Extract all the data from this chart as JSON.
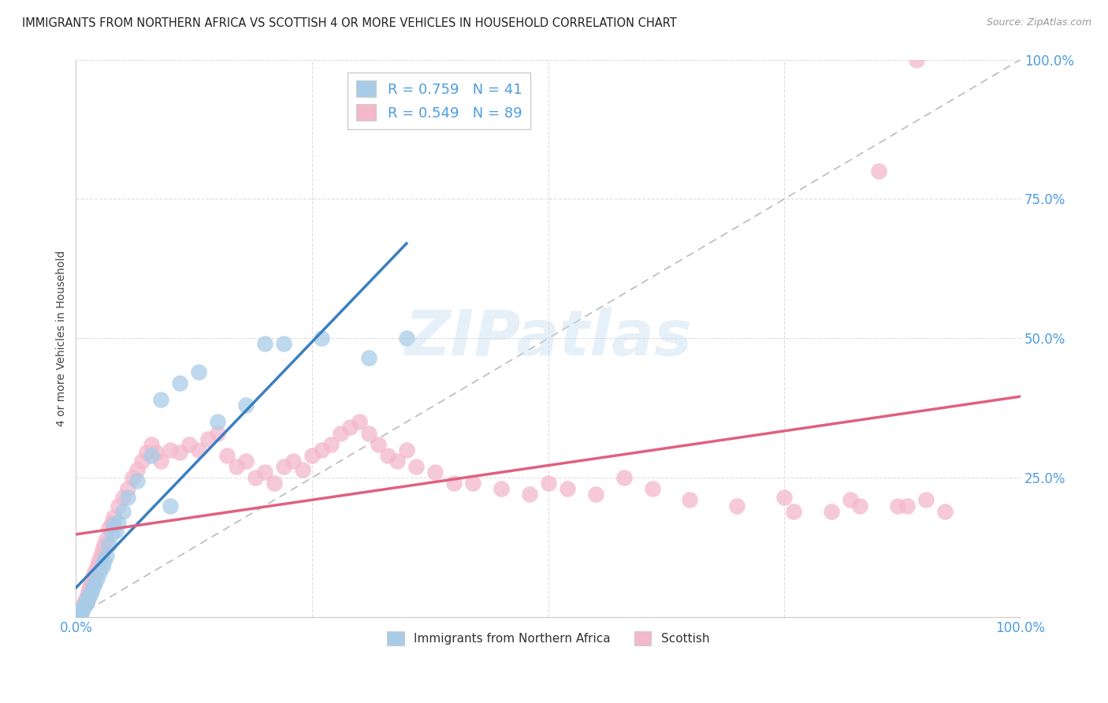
{
  "title": "IMMIGRANTS FROM NORTHERN AFRICA VS SCOTTISH 4 OR MORE VEHICLES IN HOUSEHOLD CORRELATION CHART",
  "source": "Source: ZipAtlas.com",
  "ylabel": "4 or more Vehicles in Household",
  "watermark": "ZIPatlas",
  "legend_label1": "Immigrants from Northern Africa",
  "legend_label2": "Scottish",
  "legend_R1": "R = 0.759",
  "legend_N1": "N = 41",
  "legend_R2": "R = 0.549",
  "legend_N2": "N = 89",
  "blue_color": "#a8cce8",
  "pink_color": "#f4b8cb",
  "blue_line_color": "#3a7fc1",
  "pink_line_color": "#e06080",
  "dashed_line_color": "#bbbbbb",
  "axis_tick_color": "#4d9de0",
  "grid_color": "#dddddd",
  "blue_x": [
    0.002,
    0.003,
    0.004,
    0.005,
    0.006,
    0.007,
    0.008,
    0.009,
    0.01,
    0.011,
    0.012,
    0.013,
    0.015,
    0.016,
    0.018,
    0.02,
    0.022,
    0.025,
    0.028,
    0.03,
    0.032,
    0.035,
    0.038,
    0.04,
    0.042,
    0.045,
    0.05,
    0.055,
    0.065,
    0.08,
    0.09,
    0.1,
    0.11,
    0.13,
    0.15,
    0.18,
    0.2,
    0.22,
    0.26,
    0.31,
    0.35
  ],
  "blue_y": [
    0.002,
    0.004,
    0.006,
    0.008,
    0.01,
    0.015,
    0.018,
    0.02,
    0.022,
    0.025,
    0.03,
    0.035,
    0.04,
    0.045,
    0.055,
    0.06,
    0.07,
    0.08,
    0.09,
    0.1,
    0.11,
    0.13,
    0.15,
    0.165,
    0.155,
    0.17,
    0.19,
    0.215,
    0.245,
    0.29,
    0.39,
    0.2,
    0.42,
    0.44,
    0.35,
    0.38,
    0.49,
    0.49,
    0.5,
    0.465,
    0.5
  ],
  "pink_x": [
    0.001,
    0.002,
    0.003,
    0.004,
    0.005,
    0.006,
    0.007,
    0.008,
    0.009,
    0.01,
    0.011,
    0.012,
    0.013,
    0.014,
    0.015,
    0.016,
    0.017,
    0.018,
    0.019,
    0.02,
    0.022,
    0.024,
    0.026,
    0.028,
    0.03,
    0.032,
    0.035,
    0.038,
    0.04,
    0.045,
    0.05,
    0.055,
    0.06,
    0.065,
    0.07,
    0.075,
    0.08,
    0.085,
    0.09,
    0.1,
    0.11,
    0.12,
    0.13,
    0.14,
    0.15,
    0.16,
    0.17,
    0.18,
    0.19,
    0.2,
    0.21,
    0.22,
    0.23,
    0.24,
    0.25,
    0.26,
    0.27,
    0.28,
    0.29,
    0.3,
    0.31,
    0.32,
    0.33,
    0.34,
    0.35,
    0.36,
    0.38,
    0.4,
    0.42,
    0.45,
    0.48,
    0.5,
    0.52,
    0.55,
    0.58,
    0.61,
    0.65,
    0.7,
    0.75,
    0.8,
    0.83,
    0.85,
    0.87,
    0.9,
    0.92,
    0.88,
    0.82,
    0.76,
    0.89
  ],
  "pink_y": [
    0.002,
    0.004,
    0.006,
    0.008,
    0.01,
    0.015,
    0.018,
    0.022,
    0.025,
    0.03,
    0.035,
    0.04,
    0.045,
    0.05,
    0.055,
    0.06,
    0.065,
    0.07,
    0.075,
    0.08,
    0.09,
    0.1,
    0.11,
    0.12,
    0.13,
    0.14,
    0.16,
    0.17,
    0.18,
    0.2,
    0.215,
    0.23,
    0.25,
    0.265,
    0.28,
    0.295,
    0.31,
    0.295,
    0.28,
    0.3,
    0.295,
    0.31,
    0.3,
    0.32,
    0.33,
    0.29,
    0.27,
    0.28,
    0.25,
    0.26,
    0.24,
    0.27,
    0.28,
    0.265,
    0.29,
    0.3,
    0.31,
    0.33,
    0.34,
    0.35,
    0.33,
    0.31,
    0.29,
    0.28,
    0.3,
    0.27,
    0.26,
    0.24,
    0.24,
    0.23,
    0.22,
    0.24,
    0.23,
    0.22,
    0.25,
    0.23,
    0.21,
    0.2,
    0.215,
    0.19,
    0.2,
    0.8,
    0.2,
    0.21,
    0.19,
    0.2,
    0.21,
    0.19,
    1.0
  ]
}
